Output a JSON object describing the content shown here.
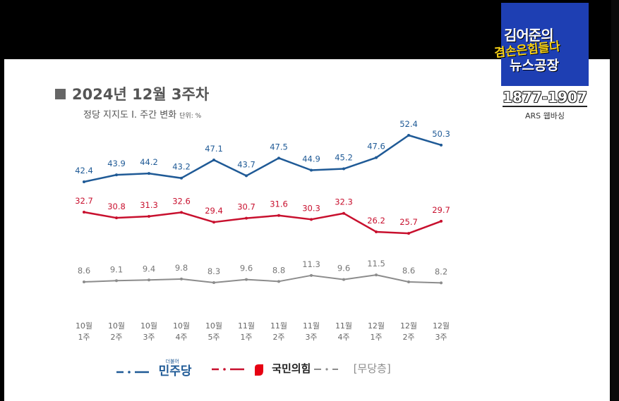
{
  "title": "2024년 12월 3주차",
  "subtitle": "정당 지지도 Ⅰ. 주간 변화",
  "unit": "단위: %",
  "logo": {
    "line1": "김어준의",
    "line2": "겸손은힘들다",
    "line3": "뉴스공장"
  },
  "phone": "1877-1907",
  "method": "ARS 웹바싱",
  "colors": {
    "democratic": "#1f5a96",
    "ppp": "#c8102e",
    "none": "#8c8c8c",
    "ppp_logo": "#e60012"
  },
  "legend": [
    {
      "name": "민주당",
      "small": "더불어",
      "color": "#1f5a96"
    },
    {
      "name": "국민의힘",
      "color": "#c8102e",
      "icon": "ppp-flame-icon"
    },
    {
      "name": "[무당층]",
      "color": "#8c8c8c"
    }
  ],
  "chart_data": {
    "type": "line",
    "categories": [
      [
        "10월",
        "1주"
      ],
      [
        "10월",
        "2주"
      ],
      [
        "10월",
        "3주"
      ],
      [
        "10월",
        "4주"
      ],
      [
        "10월",
        "5주"
      ],
      [
        "11월",
        "1주"
      ],
      [
        "11월",
        "2주"
      ],
      [
        "11월",
        "3주"
      ],
      [
        "11월",
        "4주"
      ],
      [
        "12월",
        "1주"
      ],
      [
        "12월",
        "2주"
      ],
      [
        "12월",
        "3주"
      ]
    ],
    "series": [
      {
        "name": "민주당",
        "color": "#1f5a96",
        "values": [
          42.4,
          43.9,
          44.2,
          43.2,
          47.1,
          43.7,
          47.5,
          44.9,
          45.2,
          47.6,
          52.4,
          50.3
        ]
      },
      {
        "name": "국민의힘",
        "color": "#c8102e",
        "values": [
          32.7,
          30.8,
          31.3,
          32.6,
          29.4,
          30.7,
          31.6,
          30.3,
          32.3,
          26.2,
          25.7,
          29.7
        ]
      },
      {
        "name": "[무당층]",
        "color": "#8c8c8c",
        "values": [
          8.6,
          9.1,
          9.4,
          9.8,
          8.3,
          9.6,
          8.8,
          11.3,
          9.6,
          11.5,
          8.6,
          8.2
        ]
      }
    ]
  }
}
